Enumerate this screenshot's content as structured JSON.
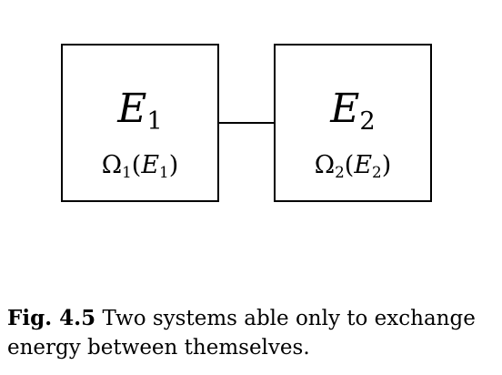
{
  "diagram": {
    "left_system": {
      "energy_symbol": "E",
      "energy_subscript": "1",
      "states_symbol": "Ω",
      "states_subscript": "1",
      "states_arg_symbol": "E",
      "states_arg_subscript": "1"
    },
    "right_system": {
      "energy_symbol": "E",
      "energy_subscript": "2",
      "states_symbol": "Ω",
      "states_subscript": "2",
      "states_arg_symbol": "E",
      "states_arg_subscript": "2"
    }
  },
  "caption": {
    "label": "Fig. 4.5",
    "text": " Two systems able only to exchange energy between themselves."
  }
}
